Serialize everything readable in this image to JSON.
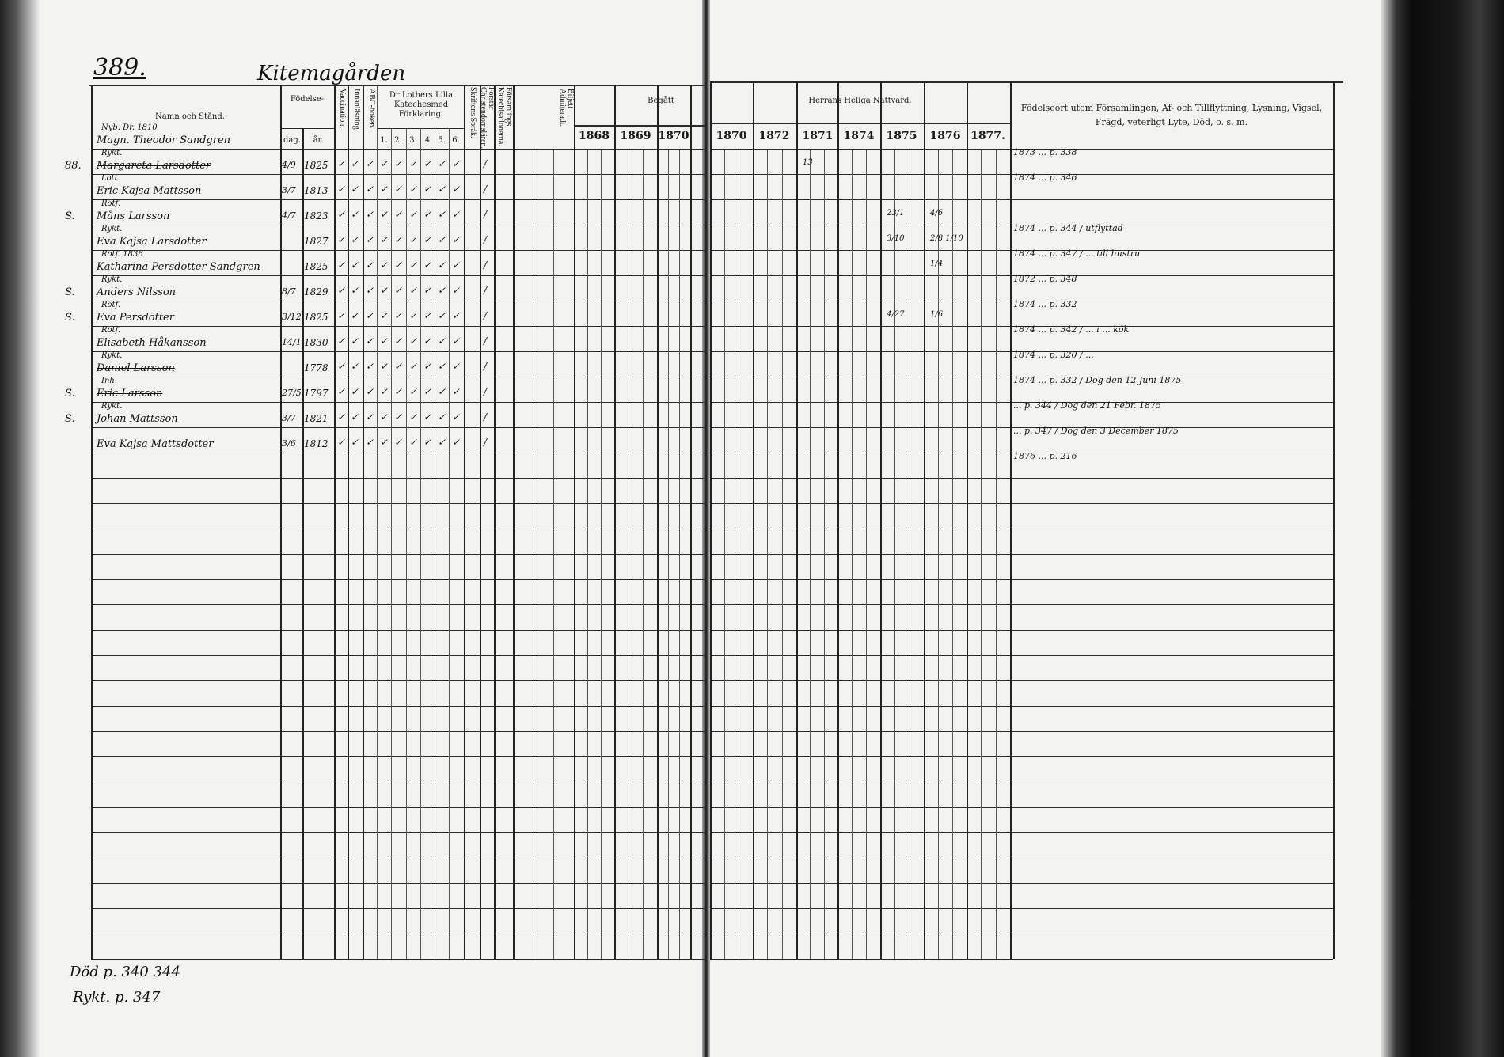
{
  "page_number": "389.",
  "place_name": "Kitemagården",
  "left_page": {
    "headers": {
      "name": "Namn och Stånd.",
      "birth": "Födelse-",
      "day": "dag.",
      "year": "år.",
      "vaccination": "Vaccination.",
      "reading": "Innanläsning.",
      "abc": "ABC-boken.",
      "catechism": "Dr Lothers Lilla Katechesmed Förklaring.",
      "catechism_parts": [
        "1.",
        "2.",
        "3.",
        "4",
        "5.",
        "6."
      ],
      "scripture": "Skriftens Språk.",
      "understands": "Förstår Christendomsläran.",
      "catechesis": "Församlings Katechisationerna.",
      "ticket": "Biljett Admiteradt.",
      "communion": "Begått",
      "years": [
        "1868",
        "1869",
        "1870"
      ]
    },
    "entries": [
      {
        "marker": "",
        "occupation": "Nyb. Dr. 1810",
        "name": "Magn. Theodor Sandgren",
        "struck": false,
        "day": "",
        "year": ""
      },
      {
        "marker": "88.",
        "occupation": "Rykt.",
        "name": "Margareta Larsdotter",
        "struck": true,
        "day": "4/9",
        "year": "1825"
      },
      {
        "marker": "",
        "occupation": "Lott.",
        "name": "Eric Kajsa Mattsson",
        "struck": false,
        "day": "3/7",
        "year": "1813"
      },
      {
        "marker": "S.",
        "occupation": "Rotf.",
        "name": "Måns Larsson",
        "struck": false,
        "day": "4/7",
        "year": "1823"
      },
      {
        "marker": "",
        "occupation": "Rykt.",
        "name": "Eva Kajsa Larsdotter",
        "struck": false,
        "day": "",
        "year": "1827"
      },
      {
        "marker": "",
        "occupation": "Rotf. 1836",
        "name": "Katharina Persdotter Sandgren",
        "struck": true,
        "day": "",
        "year": "1825"
      },
      {
        "marker": "S.",
        "occupation": "Rykt.",
        "name": "Anders Nilsson",
        "struck": false,
        "day": "8/7",
        "year": "1829"
      },
      {
        "marker": "S.",
        "occupation": "Rotf.",
        "name": "Eva Persdotter",
        "struck": false,
        "day": "3/12",
        "year": "1825"
      },
      {
        "marker": "",
        "occupation": "Rotf.",
        "name": "Elisabeth Håkansson",
        "struck": false,
        "day": "14/1",
        "year": "1830"
      },
      {
        "marker": "",
        "occupation": "Rykt.",
        "name": "Daniel Larsson",
        "struck": true,
        "day": "",
        "year": "1778"
      },
      {
        "marker": "S.",
        "occupation": "Inh.",
        "name": "Eric Larsson",
        "struck": true,
        "day": "27/5",
        "year": "1797"
      },
      {
        "marker": "S.",
        "occupation": "Rykt.",
        "name": "Johan Mattsson",
        "struck": true,
        "day": "3/7",
        "year": "1821"
      },
      {
        "marker": "",
        "occupation": "",
        "name": "Eva Kajsa Mattsdotter",
        "struck": false,
        "day": "3/6",
        "year": "1812"
      }
    ],
    "footer_notes": [
      "Död p. 340 344",
      "Rykt. p. 347"
    ]
  },
  "right_page": {
    "headers": {
      "communion": "Herrans Heliga Nattvard.",
      "years": [
        "1870",
        "1872",
        "1871",
        "1874",
        "1875",
        "1876",
        "1877."
      ],
      "notes": "Födelseort utom Församlingen, Af- och Tillflyttning, Lysning, Vigsel, Frägd, veterligt Lyte, Död, o. s. m."
    },
    "marks": [
      {
        "row": 1,
        "col": 2,
        "text": "13"
      },
      {
        "row": 3,
        "col": 4,
        "text": "23/1"
      },
      {
        "row": 3,
        "col": 5,
        "text": "4/6"
      },
      {
        "row": 4,
        "col": 4,
        "text": "3/10"
      },
      {
        "row": 4,
        "col": 5,
        "text": "2/8 1/10"
      },
      {
        "row": 5,
        "col": 5,
        "text": "1/4"
      },
      {
        "row": 7,
        "col": 4,
        "text": "4/27"
      },
      {
        "row": 7,
        "col": 5,
        "text": "1/6"
      }
    ],
    "notes": [
      "1873 ... p. 338",
      "1874 ... p. 346",
      "",
      "1874 ... p. 344 / utflyttad",
      "1874 ... p. 347 / ... till hustru",
      "1872 ... p. 348",
      "1874 ... p. 332",
      "1874 ... p. 342 / ... i ... kök",
      "1874 ... p. 320 / ...",
      "1874 ... p. 332 / Dog den 12 Juni 1875",
      "... p. 344 / Dog den 21 Febr. 1875",
      "... p. 347 / Dog den 3 December 1875",
      "1876 ... p. 216"
    ]
  }
}
